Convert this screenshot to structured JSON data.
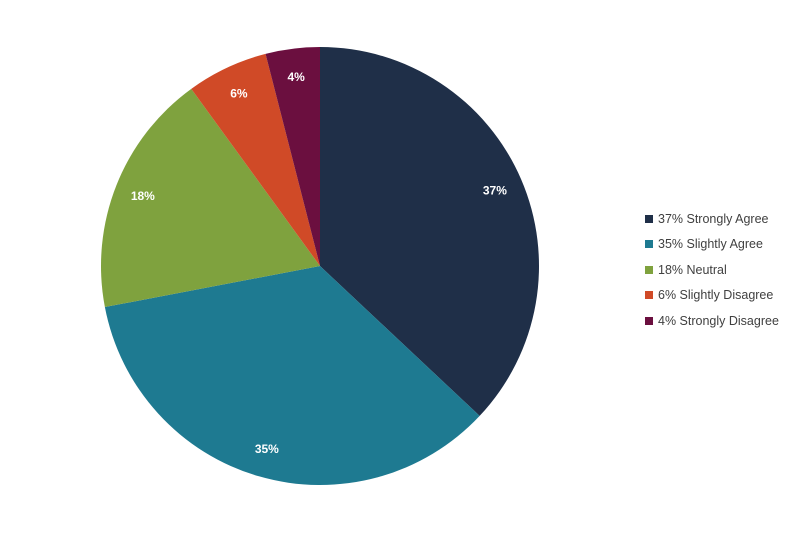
{
  "chart_data": {
    "type": "pie",
    "title": "",
    "categories": [
      "Strongly Agree",
      "Slightly Agree",
      "Neutral",
      "Slightly Disagree",
      "Strongly Disagree"
    ],
    "values": [
      37,
      35,
      18,
      6,
      4
    ],
    "data_labels": [
      "37%",
      "35%",
      "18%",
      "6%",
      "4%"
    ],
    "legend_labels": [
      "37% Strongly Agree",
      "35% Slightly Agree",
      "18% Neutral",
      "6% Slightly Disagree",
      "4% Strongly Disagree"
    ],
    "colors": [
      "#1f2f48",
      "#1e7a91",
      "#7fa23e",
      "#d04a27",
      "#6b0f3f"
    ],
    "start_angle": "12 o'clock",
    "direction": "clockwise",
    "legend_position": "right"
  }
}
